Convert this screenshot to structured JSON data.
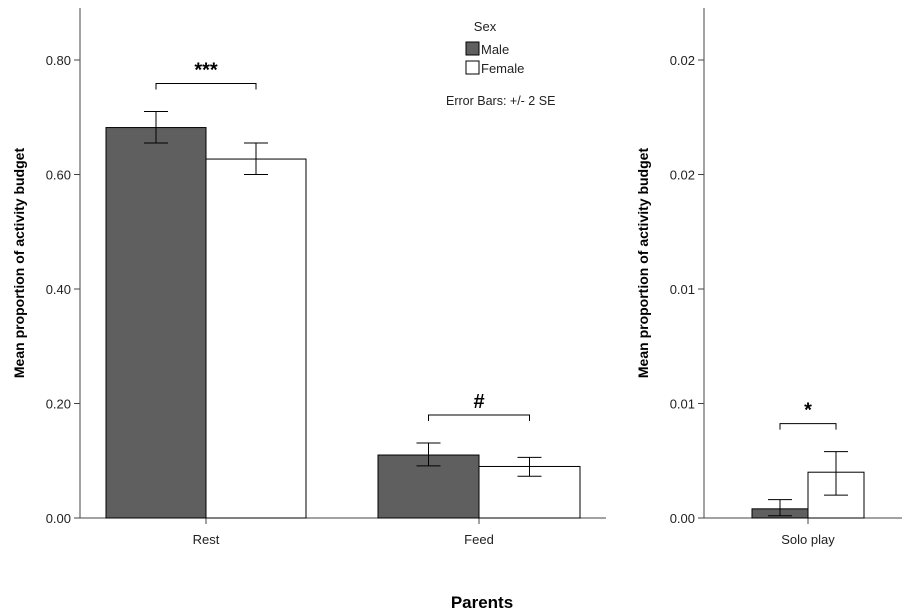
{
  "colors": {
    "male": "#5f5f5f",
    "female": "#ffffff",
    "outline": "#000000"
  },
  "legend": {
    "title": "Sex",
    "items": [
      "Male",
      "Female"
    ],
    "placement": "top-right of left panel"
  },
  "error_note": "Error Bars: +/- 2 SE",
  "x_title": "Parents",
  "chart_data": [
    {
      "type": "bar",
      "ylabel": "Mean proportion of activity budget",
      "ylim": [
        0,
        0.8
      ],
      "yticks": [
        0.0,
        0.2,
        0.4,
        0.6,
        0.8
      ],
      "ytick_labels": [
        "0.00",
        "0.20",
        "0.40",
        "0.60",
        "0.80"
      ],
      "categories": [
        "Rest",
        "Feed"
      ],
      "series": [
        {
          "name": "Male",
          "values": [
            0.682,
            0.11
          ],
          "err_low": [
            0.655,
            0.091
          ],
          "err_high": [
            0.71,
            0.131
          ]
        },
        {
          "name": "Female",
          "values": [
            0.627,
            0.09
          ],
          "err_low": [
            0.6,
            0.073
          ],
          "err_high": [
            0.655,
            0.106
          ]
        }
      ],
      "annotations": [
        {
          "category": "Rest",
          "label": "***"
        },
        {
          "category": "Feed",
          "label": "#"
        }
      ]
    },
    {
      "type": "bar",
      "ylabel": "Mean proportion of activity budget",
      "ylim": [
        0,
        0.02
      ],
      "yticks": [
        0.0,
        0.005,
        0.01,
        0.015,
        0.02
      ],
      "ytick_labels": [
        "0.00",
        "0.01",
        "0.01",
        "0.02",
        "0.02"
      ],
      "categories": [
        "Solo play"
      ],
      "series": [
        {
          "name": "Male",
          "values": [
            0.0004
          ],
          "err_low": [
            0.0001
          ],
          "err_high": [
            0.0008
          ]
        },
        {
          "name": "Female",
          "values": [
            0.002
          ],
          "err_low": [
            0.001
          ],
          "err_high": [
            0.0029
          ]
        }
      ],
      "annotations": [
        {
          "category": "Solo play",
          "label": "*"
        }
      ]
    }
  ]
}
